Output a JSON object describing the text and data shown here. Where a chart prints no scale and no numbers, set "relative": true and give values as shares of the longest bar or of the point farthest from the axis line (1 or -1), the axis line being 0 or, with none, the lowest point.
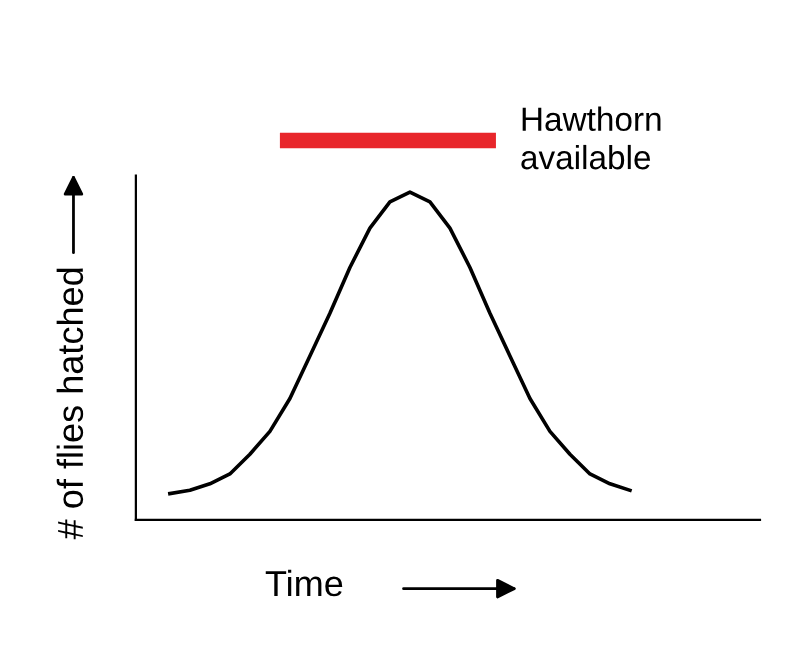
{
  "chart_data": {
    "type": "line",
    "relative": true,
    "xlabel": "Time",
    "ylabel": "# of flies hatched",
    "categories": [
      null,
      null,
      null,
      null,
      null,
      null,
      null,
      null,
      null,
      null,
      null,
      null,
      null,
      null,
      null,
      null,
      null,
      null,
      null,
      null,
      null,
      null,
      null,
      null
    ],
    "series": [
      {
        "color": "#000000",
        "values": [
          0.08,
          0.09,
          0.11,
          0.14,
          0.2,
          0.27,
          0.37,
          0.5,
          0.63,
          0.77,
          0.89,
          0.97,
          1,
          0.97,
          0.89,
          0.77,
          0.63,
          0.5,
          0.37,
          0.27,
          0.2,
          0.14,
          0.11,
          0.09
        ]
      }
    ],
    "annotations": [
      "Hawthorn available"
    ],
    "legend": false,
    "marker": "none",
    "line_style": "solid"
  }
}
